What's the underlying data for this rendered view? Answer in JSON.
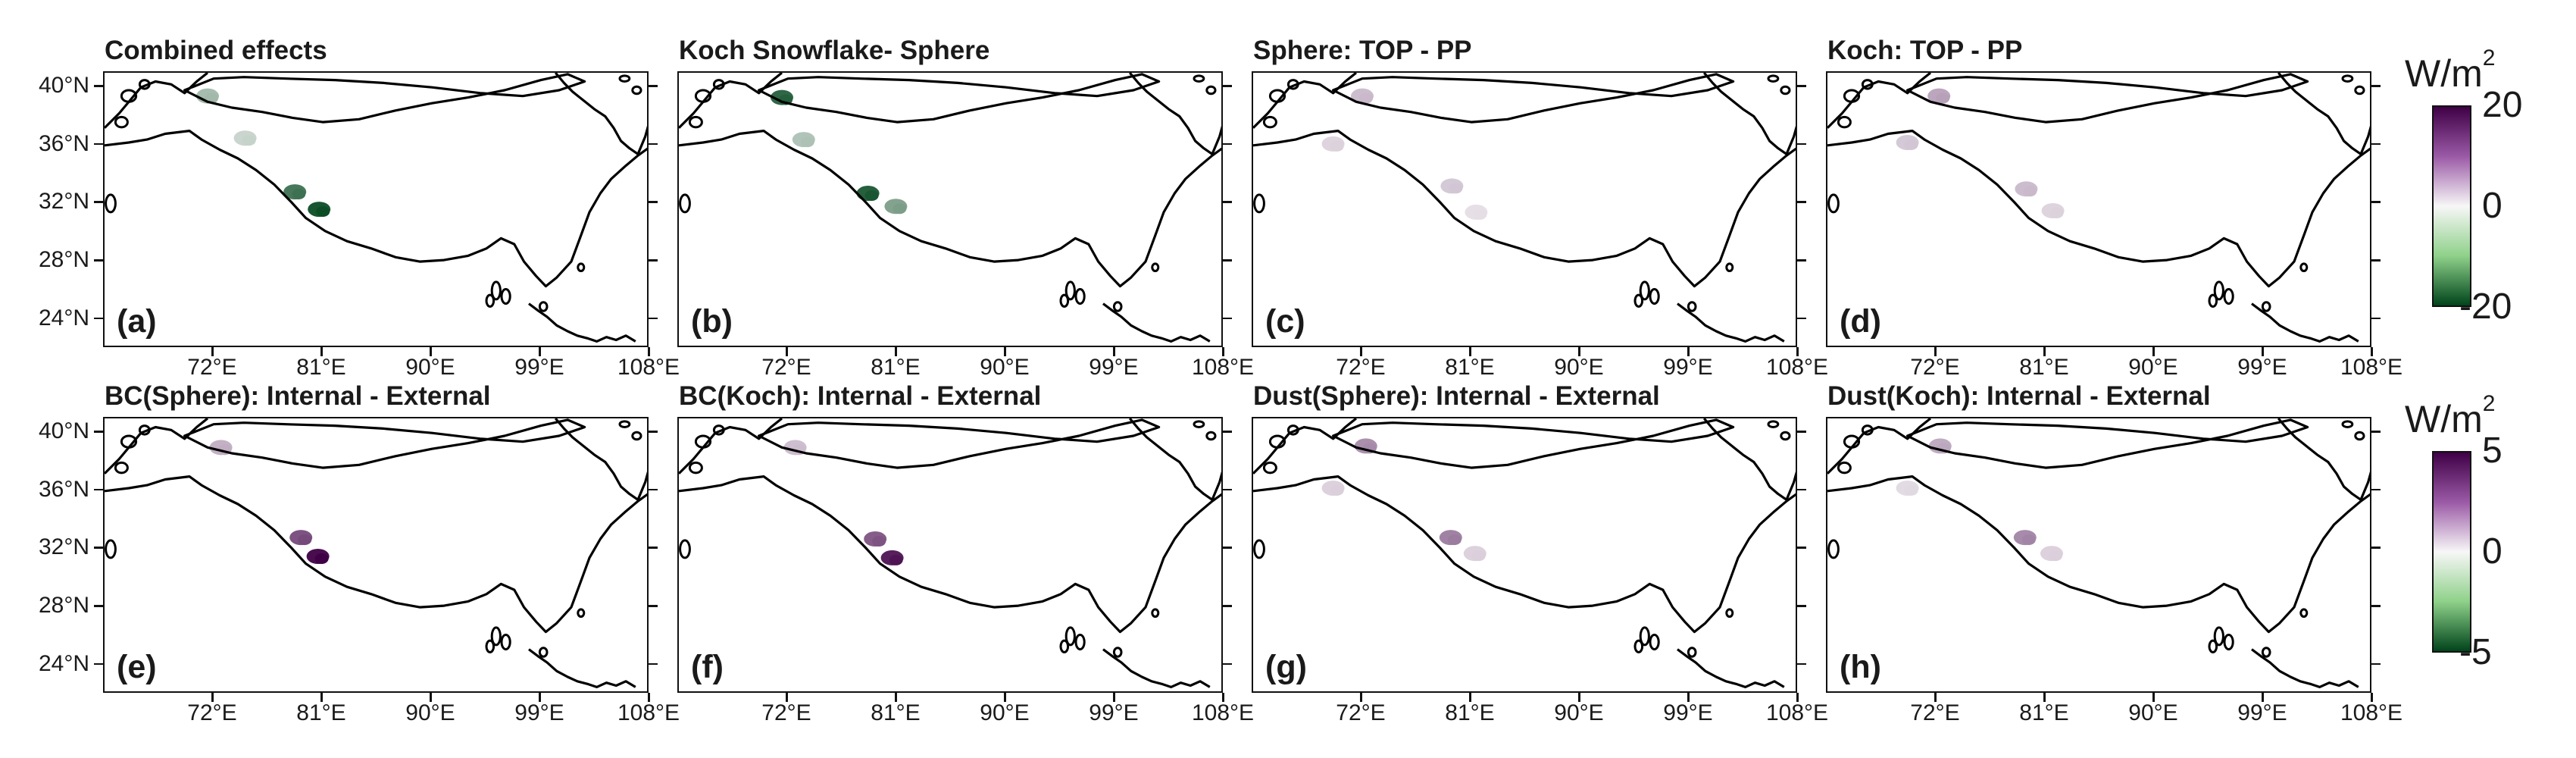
{
  "figure": {
    "panels": [
      {
        "id": "a",
        "title": "Combined effects",
        "letter": "(a)",
        "scheme": "green",
        "patches": [
          {
            "lon": 71.5,
            "lat": 39.4,
            "v": -7
          },
          {
            "lon": 74.6,
            "lat": 36.5,
            "v": -4
          },
          {
            "lon": 78.7,
            "lat": 32.8,
            "v": -15
          },
          {
            "lon": 80.7,
            "lat": 31.6,
            "v": -19
          }
        ]
      },
      {
        "id": "b",
        "title": "Koch Snowflake- Sphere",
        "letter": "(b)",
        "scheme": "green",
        "patches": [
          {
            "lon": 71.5,
            "lat": 39.3,
            "v": -17
          },
          {
            "lon": 73.3,
            "lat": 36.4,
            "v": -6
          },
          {
            "lon": 78.6,
            "lat": 32.7,
            "v": -18
          },
          {
            "lon": 80.9,
            "lat": 31.8,
            "v": -10
          }
        ]
      },
      {
        "id": "c",
        "title": "Sphere: TOP - PP",
        "letter": "(c)",
        "scheme": "purple",
        "patches": [
          {
            "lon": 72.0,
            "lat": 39.4,
            "v": 5
          },
          {
            "lon": 69.6,
            "lat": 36.1,
            "v": 3
          },
          {
            "lon": 79.4,
            "lat": 33.2,
            "v": 4
          },
          {
            "lon": 81.4,
            "lat": 31.4,
            "v": 2
          }
        ]
      },
      {
        "id": "d",
        "title": "Koch: TOP - PP",
        "letter": "(d)",
        "scheme": "purple",
        "patches": [
          {
            "lon": 72.2,
            "lat": 39.4,
            "v": 7
          },
          {
            "lon": 69.6,
            "lat": 36.2,
            "v": 4
          },
          {
            "lon": 79.4,
            "lat": 33.0,
            "v": 5
          },
          {
            "lon": 81.6,
            "lat": 31.5,
            "v": 3
          }
        ]
      },
      {
        "id": "e",
        "title": "BC(Sphere): Internal - External",
        "letter": "(e)",
        "scheme": "purple",
        "patches": [
          {
            "lon": 72.6,
            "lat": 39.0,
            "v": 1.5
          },
          {
            "lon": 79.2,
            "lat": 32.8,
            "v": 3.5
          },
          {
            "lon": 80.6,
            "lat": 31.5,
            "v": 5
          }
        ]
      },
      {
        "id": "f",
        "title": "BC(Koch): Internal - External",
        "letter": "(f)",
        "scheme": "purple",
        "patches": [
          {
            "lon": 72.6,
            "lat": 39.0,
            "v": 1.2
          },
          {
            "lon": 79.2,
            "lat": 32.7,
            "v": 3.3
          },
          {
            "lon": 80.6,
            "lat": 31.4,
            "v": 4.6
          }
        ]
      },
      {
        "id": "g",
        "title": "Dust(Sphere): Internal - External",
        "letter": "(g)",
        "scheme": "purple",
        "patches": [
          {
            "lon": 72.3,
            "lat": 39.1,
            "v": 2.2
          },
          {
            "lon": 69.6,
            "lat": 36.2,
            "v": 0.8
          },
          {
            "lon": 79.3,
            "lat": 32.8,
            "v": 2.5
          },
          {
            "lon": 81.3,
            "lat": 31.7,
            "v": 0.8
          }
        ]
      },
      {
        "id": "h",
        "title": "Dust(Koch): Internal - External",
        "letter": "(h)",
        "scheme": "purple",
        "patches": [
          {
            "lon": 72.3,
            "lat": 39.1,
            "v": 1.6
          },
          {
            "lon": 69.6,
            "lat": 36.2,
            "v": 0.6
          },
          {
            "lon": 79.3,
            "lat": 32.8,
            "v": 2.3
          },
          {
            "lon": 81.5,
            "lat": 31.7,
            "v": 0.8
          }
        ]
      }
    ],
    "y_ticks": [
      "40°N",
      "36°N",
      "32°N",
      "28°N",
      "24°N"
    ],
    "y_tick_values": [
      40,
      36,
      32,
      28,
      24
    ],
    "x_ticks": [
      "72°E",
      "81°E",
      "90°E",
      "99°E",
      "108°E"
    ],
    "x_tick_values": [
      72,
      81,
      90,
      99,
      108
    ],
    "extent": {
      "lon": [
        63,
        108
      ],
      "lat": [
        22,
        41
      ]
    },
    "colorbars": [
      {
        "unit": "W/m",
        "unit_exp": "2",
        "max_label": "20",
        "mid_label": "0",
        "min_label": "-20",
        "vmax": 20
      },
      {
        "unit": "W/m",
        "unit_exp": "2",
        "max_label": "5",
        "mid_label": "0",
        "min_label": "-5",
        "vmax": 5
      }
    ],
    "colors": {
      "purple_max": "#3f0046",
      "white": "#f7f7f7",
      "green_max": "#00441b",
      "outline": "#000000"
    }
  }
}
